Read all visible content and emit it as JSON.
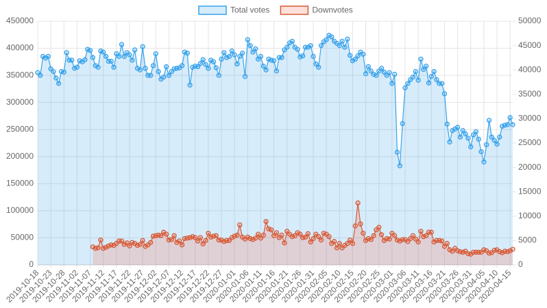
{
  "chart_data": {
    "type": "line",
    "categories": [
      "2019-10-18",
      null,
      null,
      null,
      null,
      "2019-10-23",
      null,
      null,
      null,
      null,
      "2019-10-28",
      null,
      null,
      null,
      null,
      "2019-11-02",
      null,
      null,
      null,
      null,
      "2019-11-07",
      null,
      null,
      null,
      null,
      "2019-11-12",
      null,
      null,
      null,
      null,
      "2019-11-17",
      null,
      null,
      null,
      null,
      "2019-11-22",
      null,
      null,
      null,
      null,
      "2019-11-27",
      null,
      null,
      null,
      null,
      "2019-12-02",
      null,
      null,
      null,
      null,
      "2019-12-07",
      null,
      null,
      null,
      null,
      "2019-12-12",
      null,
      null,
      null,
      null,
      "2019-12-17",
      null,
      null,
      null,
      null,
      "2019-12-22",
      null,
      null,
      null,
      null,
      "2019-12-27",
      null,
      null,
      null,
      null,
      "2020-01-01",
      null,
      null,
      null,
      null,
      "2020-01-06",
      null,
      null,
      null,
      null,
      "2020-01-11",
      null,
      null,
      null,
      null,
      "2020-01-16",
      null,
      null,
      null,
      null,
      "2020-01-21",
      null,
      null,
      null,
      null,
      "2020-01-26",
      null,
      null,
      null,
      null,
      "2020-01-31",
      null,
      null,
      null,
      null,
      "2020-02-05",
      null,
      null,
      null,
      null,
      "2020-02-10",
      null,
      null,
      null,
      null,
      "2020-02-15",
      null,
      null,
      null,
      null,
      "2020-02-20",
      null,
      null,
      null,
      null,
      "2020-02-25",
      null,
      null,
      null,
      null,
      "2020-03-01",
      null,
      null,
      null,
      null,
      "2020-03-06",
      null,
      null,
      null,
      null,
      "2020-03-11",
      null,
      null,
      null,
      null,
      "2020-03-16",
      null,
      null,
      null,
      null,
      "2020-03-21",
      null,
      null,
      null,
      null,
      "2020-03-26",
      null,
      null,
      null,
      null,
      "2020-03-31",
      null,
      null,
      null,
      null,
      "2020-04-05",
      null,
      null,
      null,
      null,
      "2020-04-10",
      null,
      null,
      null,
      null,
      "2020-04-15",
      null
    ],
    "series": [
      {
        "name": "Total votes",
        "color": "#36a2eb",
        "fill": "rgba(54,162,235,0.2)",
        "values": [
          355000,
          350000,
          385000,
          382000,
          385000,
          362000,
          357000,
          345000,
          335000,
          357000,
          356000,
          392000,
          378000,
          378000,
          363000,
          365000,
          377000,
          375000,
          379000,
          398000,
          396000,
          383000,
          368000,
          365000,
          395000,
          393000,
          385000,
          376000,
          376000,
          365000,
          390000,
          385000,
          407000,
          385000,
          392000,
          388000,
          378000,
          397000,
          363000,
          360000,
          403000,
          363000,
          350000,
          350000,
          368000,
          390000,
          357000,
          343000,
          347000,
          366000,
          350000,
          357000,
          362000,
          363000,
          364000,
          368000,
          393000,
          391000,
          332000,
          365000,
          367000,
          366000,
          372000,
          379000,
          370000,
          363000,
          378000,
          375000,
          364000,
          350000,
          380000,
          392000,
          383000,
          385000,
          395000,
          388000,
          371000,
          385000,
          391000,
          348000,
          416000,
          405000,
          393000,
          399000,
          380000,
          385000,
          367000,
          360000,
          380000,
          378000,
          377000,
          358000,
          383000,
          383000,
          397000,
          402000,
          410000,
          413000,
          402000,
          398000,
          384000,
          386000,
          402000,
          402000,
          405000,
          385000,
          371000,
          365000,
          405000,
          412000,
          416000,
          424000,
          421000,
          413000,
          409000,
          405000,
          413000,
          402000,
          417000,
          387000,
          377000,
          380000,
          386000,
          393000,
          389000,
          353000,
          366000,
          358000,
          352000,
          350000,
          358000,
          363000,
          356000,
          350000,
          355000,
          335000,
          352000,
          208000,
          183000,
          261000,
          327000,
          335000,
          342000,
          347000,
          357000,
          341000,
          380000,
          361000,
          367000,
          336000,
          348000,
          357000,
          342000,
          335000,
          335000,
          316000,
          260000,
          227000,
          248000,
          251000,
          254000,
          236000,
          248000,
          242000,
          234000,
          218000,
          240000,
          246000,
          232000,
          209000,
          190000,
          222000,
          267000,
          236000,
          230000,
          223000,
          236000,
          256000,
          258000,
          259000,
          272000,
          259000
        ]
      },
      {
        "name": "Downvotes",
        "color": "#d35a35",
        "fill": "rgba(255,99,71,0.2)",
        "axis": "y2",
        "values": [
          null,
          null,
          null,
          null,
          null,
          null,
          null,
          null,
          null,
          null,
          null,
          null,
          null,
          null,
          null,
          null,
          null,
          null,
          null,
          null,
          null,
          3700,
          3400,
          3500,
          5100,
          3400,
          3600,
          3900,
          4100,
          4000,
          4400,
          4900,
          4900,
          4200,
          4500,
          3900,
          4600,
          4400,
          4000,
          4200,
          5000,
          3800,
          4100,
          4600,
          5900,
          6000,
          6100,
          6000,
          6700,
          6300,
          5100,
          5200,
          6000,
          4600,
          4900,
          4100,
          5400,
          5500,
          5600,
          5800,
          5600,
          4900,
          5600,
          4300,
          5000,
          6500,
          5700,
          5900,
          6000,
          5100,
          5100,
          4800,
          5000,
          5000,
          5600,
          5900,
          6100,
          8200,
          5700,
          5300,
          5700,
          5400,
          5200,
          5500,
          6300,
          5500,
          6100,
          8900,
          7400,
          7200,
          6000,
          6600,
          5600,
          6100,
          4500,
          6900,
          6300,
          5800,
          6000,
          6600,
          6300,
          5600,
          5700,
          6400,
          4700,
          5400,
          6300,
          5800,
          5100,
          6500,
          6300,
          5800,
          4400,
          4800,
          3500,
          4400,
          3500,
          4000,
          4400,
          5100,
          4400,
          8000,
          12700,
          8400,
          6500,
          5000,
          5400,
          5200,
          6000,
          7200,
          7700,
          6200,
          5000,
          5400,
          5300,
          6500,
          6000,
          5100,
          4900,
          5200,
          5200,
          4800,
          5400,
          6000,
          5300,
          4700,
          6900,
          5800,
          6000,
          6700,
          6700,
          4700,
          5000,
          5000,
          4900,
          3800,
          4400,
          3100,
          2800,
          3400,
          2900,
          2700,
          2600,
          2800,
          2300,
          2200,
          2600,
          2600,
          2600,
          2600,
          3100,
          2900,
          2400,
          2500,
          3000,
          3100,
          2700,
          2500,
          2800,
          2700,
          2900,
          3200
        ]
      }
    ],
    "ylim": [
      0,
      450000
    ],
    "yticks": [
      0,
      50000,
      100000,
      150000,
      200000,
      250000,
      300000,
      350000,
      400000,
      450000
    ],
    "y2lim": [
      0,
      50000
    ],
    "y2ticks": [
      0,
      5000,
      10000,
      15000,
      20000,
      25000,
      30000,
      35000,
      40000,
      45000,
      50000
    ],
    "grid": true,
    "legend": "top"
  }
}
